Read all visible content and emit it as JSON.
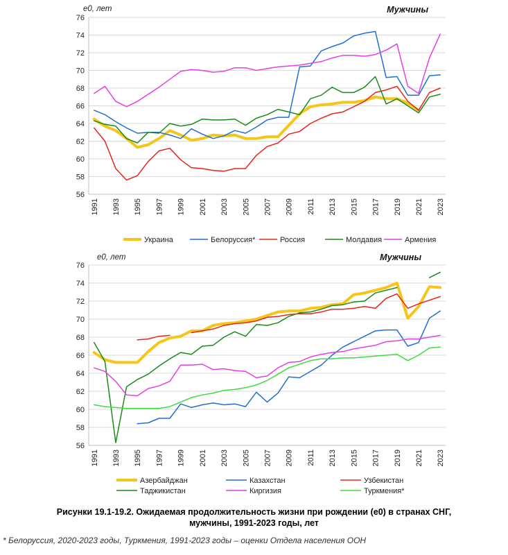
{
  "chart_data": [
    {
      "type": "line",
      "ylabel": "e0, лет",
      "panel_title": "Мужчины",
      "ylim": [
        56,
        76
      ],
      "yticks": [
        56,
        58,
        60,
        62,
        64,
        66,
        68,
        70,
        72,
        74,
        76
      ],
      "x_tick_labels": [
        "1991",
        "1993",
        "1995",
        "1997",
        "1999",
        "2001",
        "2003",
        "2005",
        "2007",
        "2009",
        "2011",
        "2013",
        "2015",
        "2017",
        "2019",
        "2021",
        "2023"
      ],
      "grid": true,
      "legend_position": "bottom",
      "series": [
        {
          "name": "Украина",
          "color": "#f5c518",
          "width": 4,
          "start": 1991,
          "values": [
            64.5,
            63.7,
            63.2,
            62.3,
            61.3,
            61.6,
            62.3,
            63.2,
            62.7,
            62.1,
            62.3,
            62.7,
            62.6,
            62.7,
            62.3,
            62.3,
            62.5,
            62.5,
            63.8,
            65.1,
            65.9,
            66.1,
            66.2,
            66.4,
            66.4,
            66.6,
            67.0,
            66.8,
            66.8,
            66.3,
            65.5,
            null,
            null
          ]
        },
        {
          "name": "Белоруссия*",
          "color": "#1f6fd0",
          "width": 1.5,
          "start": 1991,
          "values": [
            65.5,
            65.0,
            64.2,
            63.5,
            62.9,
            63.0,
            63.0,
            62.7,
            62.3,
            63.4,
            62.8,
            62.3,
            62.6,
            63.2,
            62.9,
            63.6,
            64.4,
            64.7,
            64.7,
            70.4,
            70.5,
            72.2,
            72.7,
            73.1,
            73.9,
            74.2,
            74.4,
            69.2,
            69.3,
            67.2,
            67.2,
            69.4,
            69.5
          ]
        },
        {
          "name": "Россия",
          "color": "#e8231c",
          "width": 1.5,
          "start": 1991,
          "values": [
            63.5,
            62.0,
            58.9,
            57.6,
            58.1,
            59.7,
            60.9,
            61.2,
            59.9,
            59.0,
            58.9,
            58.7,
            58.6,
            58.9,
            58.9,
            60.4,
            61.4,
            61.8,
            62.8,
            63.1,
            64.0,
            64.6,
            65.1,
            65.3,
            65.9,
            66.5,
            67.5,
            67.8,
            68.2,
            66.5,
            65.5,
            67.5,
            68.0
          ]
        },
        {
          "name": "Молдавия",
          "color": "#1a8a1a",
          "width": 1.5,
          "start": 1991,
          "values": [
            64.3,
            63.9,
            63.7,
            62.3,
            61.8,
            63.0,
            62.9,
            64.0,
            63.7,
            63.9,
            64.5,
            64.4,
            64.4,
            64.5,
            63.8,
            64.6,
            65.0,
            65.6,
            65.3,
            65.0,
            66.8,
            67.2,
            68.1,
            67.5,
            67.5,
            68.1,
            69.3,
            66.2,
            66.8,
            66.0,
            65.2,
            67.0,
            67.3
          ]
        },
        {
          "name": "Армения",
          "color": "#e43fe4",
          "width": 1.5,
          "start": 1991,
          "values": [
            67.4,
            68.2,
            66.5,
            65.9,
            66.5,
            67.3,
            68.1,
            69.0,
            69.9,
            70.1,
            70.0,
            69.8,
            69.9,
            70.3,
            70.3,
            70.0,
            70.2,
            70.4,
            70.5,
            70.6,
            70.8,
            71.0,
            71.4,
            71.7,
            71.7,
            71.6,
            71.8,
            72.3,
            73.0,
            68.2,
            67.4,
            71.4,
            74.1
          ]
        }
      ]
    },
    {
      "type": "line",
      "ylabel": "e0, лет",
      "panel_title": "Мужчины",
      "ylim": [
        56,
        76
      ],
      "yticks": [
        56,
        58,
        60,
        62,
        64,
        66,
        68,
        70,
        72,
        74,
        76
      ],
      "x_tick_labels": [
        "1991",
        "1993",
        "1995",
        "1997",
        "1999",
        "2001",
        "2003",
        "2005",
        "2007",
        "2009",
        "2011",
        "2013",
        "2015",
        "2017",
        "2019",
        "2021",
        "2023"
      ],
      "grid": true,
      "legend_position": "bottom",
      "series": [
        {
          "name": "Азербайджан",
          "color": "#f5c518",
          "width": 4,
          "start": 1991,
          "values": [
            66.3,
            65.5,
            65.2,
            65.2,
            65.2,
            66.4,
            67.4,
            67.9,
            68.1,
            68.7,
            68.7,
            69.3,
            69.5,
            69.6,
            69.8,
            70.0,
            70.4,
            70.8,
            70.9,
            70.9,
            71.2,
            71.3,
            71.6,
            71.7,
            72.7,
            72.9,
            73.2,
            73.5,
            74.0,
            70.1,
            71.4,
            73.6,
            73.5
          ]
        },
        {
          "name": "Казахстан",
          "color": "#1f6fd0",
          "width": 1.5,
          "start": 1991,
          "values": [
            null,
            null,
            null,
            null,
            58.4,
            58.5,
            59.0,
            59.0,
            60.6,
            60.2,
            60.5,
            60.7,
            60.5,
            60.6,
            60.3,
            61.9,
            60.8,
            61.8,
            63.6,
            63.5,
            64.2,
            64.9,
            66.0,
            66.9,
            67.5,
            68.1,
            68.7,
            68.8,
            68.8,
            67.0,
            67.4,
            70.1,
            70.9
          ]
        },
        {
          "name": "Узбекистан",
          "color": "#e8231c",
          "width": 1.5,
          "start": 1991,
          "values": [
            null,
            null,
            null,
            null,
            67.7,
            67.8,
            68.1,
            68.2,
            null,
            68.5,
            68.7,
            68.9,
            69.3,
            69.5,
            69.6,
            69.8,
            70.2,
            70.3,
            70.5,
            70.6,
            70.6,
            70.8,
            71.1,
            71.1,
            71.2,
            71.4,
            71.2,
            72.3,
            72.8,
            71.2,
            71.7,
            72.1,
            72.5
          ]
        },
        {
          "name": "Таджикистан",
          "color": "#1a8a1a",
          "width": 1.5,
          "start": 1991,
          "values": [
            67.4,
            65.3,
            56.3,
            62.5,
            63.3,
            63.9,
            64.8,
            65.6,
            66.3,
            66.1,
            67.0,
            67.1,
            68.0,
            68.6,
            68.1,
            69.4,
            69.3,
            69.6,
            70.3,
            70.7,
            70.8,
            71.1,
            71.5,
            71.6,
            71.9,
            72.0,
            72.9,
            73.2,
            73.5,
            null,
            null,
            74.6,
            75.2
          ]
        },
        {
          "name": "Киргизия",
          "color": "#e43fe4",
          "width": 1.5,
          "start": 1991,
          "values": [
            64.6,
            64.2,
            63.1,
            61.6,
            61.5,
            62.3,
            62.6,
            63.1,
            64.9,
            64.9,
            65.0,
            64.4,
            64.5,
            64.3,
            64.2,
            63.5,
            63.7,
            64.6,
            65.2,
            65.3,
            65.8,
            66.1,
            66.3,
            66.4,
            66.7,
            66.9,
            67.1,
            67.5,
            67.6,
            67.8,
            67.8,
            68.0,
            68.2
          ]
        },
        {
          "name": "Туркмения*",
          "color": "#3fdc3f",
          "width": 1.5,
          "start": 1991,
          "values": [
            60.5,
            60.3,
            60.2,
            60.1,
            60.1,
            60.1,
            60.1,
            60.3,
            60.8,
            61.3,
            61.6,
            61.8,
            62.1,
            62.2,
            62.4,
            62.7,
            63.2,
            63.9,
            64.6,
            65.0,
            65.4,
            65.6,
            65.6,
            65.7,
            65.7,
            65.8,
            65.9,
            66.0,
            66.1,
            65.4,
            66.0,
            66.8,
            66.9
          ]
        }
      ]
    }
  ],
  "caption": {
    "line1": "Рисунки 19.1-19.2. Ожидаемая продолжительность жизни при рождении (e0) в странах СНГ,",
    "line2": "мужчины, 1991-2023 годы, лет"
  },
  "footnote": "* Белоруссия, 2020-2023 годы, Туркмения, 1991-2023 годы – оценки Отдела населения ООН"
}
